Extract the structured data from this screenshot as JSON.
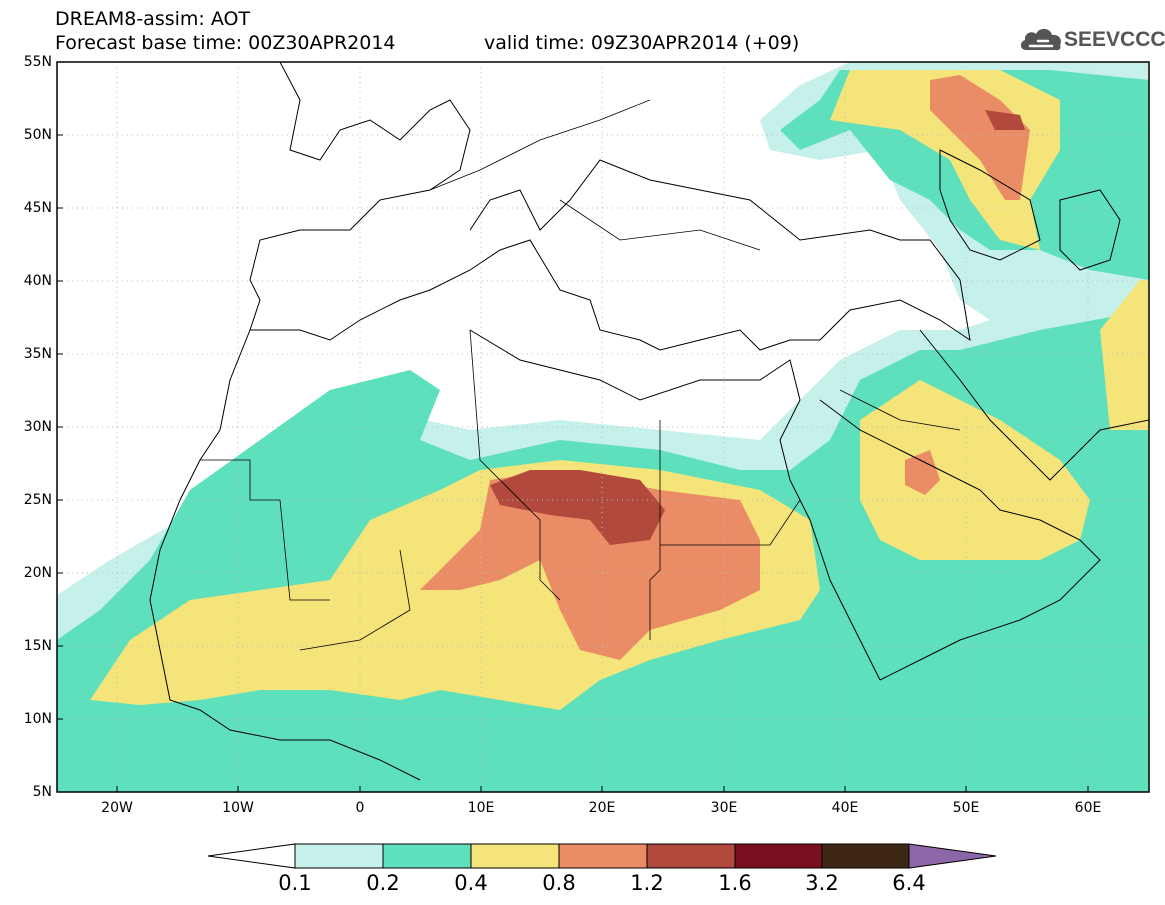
{
  "header": {
    "title": "DREAM8-assim: AOT",
    "base_time": "Forecast base time: 00Z30APR2014",
    "valid_time": "valid time: 09Z30APR2014 (+09)",
    "logo_text": "SEEVCCC",
    "logo_icon": "cloud-icon"
  },
  "map": {
    "variable": "AOT",
    "lat_range": [
      5,
      55
    ],
    "lon_range": [
      -25,
      65
    ],
    "lat_labels": [
      "55N",
      "50N",
      "45N",
      "40N",
      "35N",
      "30N",
      "25N",
      "20N",
      "15N",
      "10N",
      "5N"
    ],
    "lon_labels": [
      "20W",
      "10W",
      "0",
      "10E",
      "20E",
      "30E",
      "40E",
      "50E",
      "60E"
    ],
    "grid": "dotted"
  },
  "colorbar": {
    "labels": [
      "0.1",
      "0.2",
      "0.4",
      "0.8",
      "1.2",
      "1.6",
      "3.2",
      "6.4"
    ],
    "colors": [
      "#ffffff",
      "#c6f0ea",
      "#5ee0bc",
      "#f5e47a",
      "#ea8c66",
      "#b14a3c",
      "#7a0f22",
      "#3e2715",
      "#8d66aa"
    ]
  }
}
